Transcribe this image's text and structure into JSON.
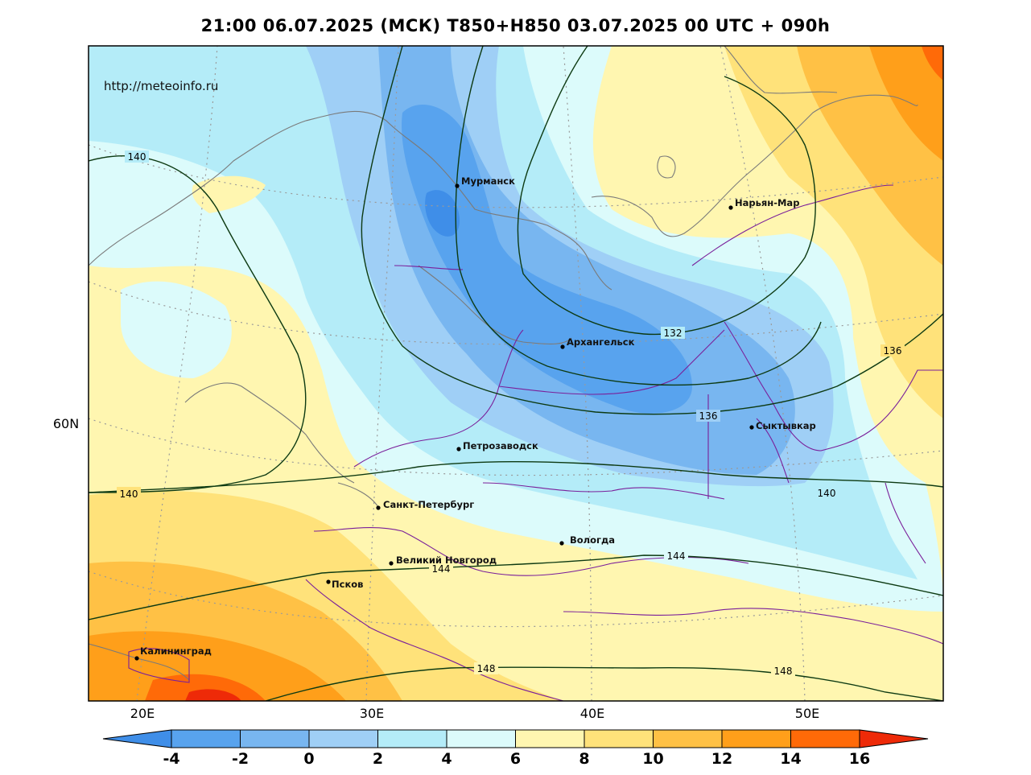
{
  "title": "21:00 06.07.2025 (МСК) T850+H850 03.07.2025 00 UTC + 090h",
  "watermark": "http://meteoinfo.ru",
  "axes": {
    "longitude_labels": [
      "20E",
      "30E",
      "40E",
      "50E"
    ],
    "latitude_labels": [
      "60N"
    ]
  },
  "cities": [
    {
      "name": "Мурманск"
    },
    {
      "name": "Нарьян-Мар"
    },
    {
      "name": "Архангельск"
    },
    {
      "name": "Сыктывкар"
    },
    {
      "name": "Петрозаводск"
    },
    {
      "name": "Санкт-Петербург"
    },
    {
      "name": "Вологда"
    },
    {
      "name": "Великий Новгород"
    },
    {
      "name": "Псков"
    },
    {
      "name": "Калининград"
    }
  ],
  "isoline_labels": [
    "140",
    "140",
    "132",
    "136",
    "136",
    "140",
    "144",
    "144",
    "148",
    "148"
  ],
  "colorbar": {
    "ticks": [
      "-4",
      "-2",
      "0",
      "2",
      "4",
      "6",
      "8",
      "10",
      "12",
      "14",
      "16"
    ],
    "colors": [
      "#3f8ee8",
      "#58a3ee",
      "#78b6f0",
      "#9fcff6",
      "#b4ecf8",
      "#dcfbfb",
      "#fff6b0",
      "#ffe27a",
      "#ffc145",
      "#ff9f1a",
      "#ff6a08",
      "#ee2a08"
    ]
  },
  "palette": {
    "frame": "#000000",
    "isoline": "#0d3a12",
    "coast": "#7a7a7a",
    "border": "#7a1f9a",
    "graticule": "#9a9a9a"
  }
}
